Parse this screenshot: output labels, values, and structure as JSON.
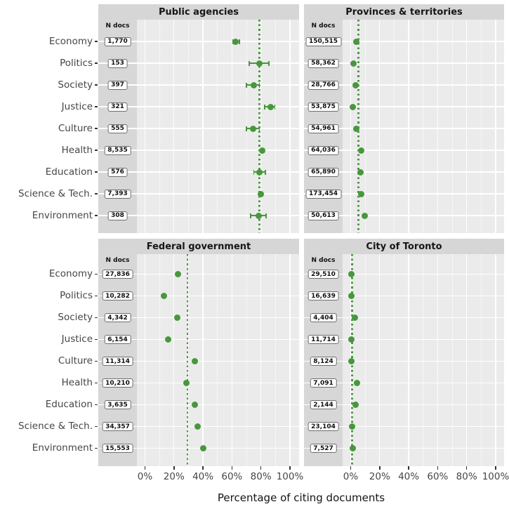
{
  "chart_data": {
    "type": "scatter",
    "xlabel": "Percentage of citing documents",
    "ndocs_header": "N docs",
    "xlim": [
      0,
      100
    ],
    "x_ticks_pct": [
      0,
      20,
      40,
      60,
      80,
      100
    ],
    "x_tick_labels": [
      "0%",
      "20%",
      "40%",
      "60%",
      "80%",
      "100%"
    ],
    "grid": "on",
    "accent_green": "#48973d",
    "panel_bg": "#ebebeb",
    "strip_bg": "#d6d6d6",
    "categories": [
      "Economy",
      "Politics",
      "Society",
      "Justice",
      "Culture",
      "Health",
      "Education",
      "Science & Tech.",
      "Environment"
    ],
    "panels": [
      {
        "title": "Public agencies",
        "n_docs": [
          "1,770",
          "153",
          "397",
          "321",
          "555",
          "8,535",
          "576",
          "7,393",
          "308"
        ],
        "values": [
          62.5,
          79,
          75,
          86.5,
          74.5,
          81,
          79,
          80,
          78.5
        ],
        "ci_low": [
          60.5,
          72,
          70,
          82.5,
          70,
          80,
          75,
          79.2,
          73
        ],
        "ci_high": [
          65,
          85.6,
          79,
          89.5,
          79,
          82,
          83,
          81,
          83.5
        ],
        "refline": 78.8
      },
      {
        "title": "Provinces & territories",
        "n_docs": [
          "150,515",
          "58,362",
          "28,766",
          "53,875",
          "54,961",
          "64,036",
          "65,890",
          "173,454",
          "50,613"
        ],
        "values": [
          3.7,
          1.8,
          3.5,
          1.4,
          3.9,
          7.1,
          6.7,
          7.4,
          9.6
        ],
        "refline": 5.2
      },
      {
        "title": "Federal government",
        "n_docs": [
          "27,836",
          "10,282",
          "4,342",
          "6,154",
          "11,314",
          "10,210",
          "3,635",
          "34,357",
          "15,553"
        ],
        "values": [
          22.8,
          12.9,
          22.4,
          15.9,
          34.6,
          28.4,
          34.4,
          36.5,
          40.0
        ],
        "refline": 29.3
      },
      {
        "title": "City of Toronto",
        "n_docs": [
          "29,510",
          "16,639",
          "4,404",
          "11,714",
          "8,124",
          "7,091",
          "2,144",
          "23,104",
          "7,527"
        ],
        "values": [
          0.7,
          0.3,
          2.7,
          0.3,
          0.7,
          4.3,
          3.5,
          0.9,
          1.6
        ],
        "refline": 1.0
      }
    ]
  }
}
